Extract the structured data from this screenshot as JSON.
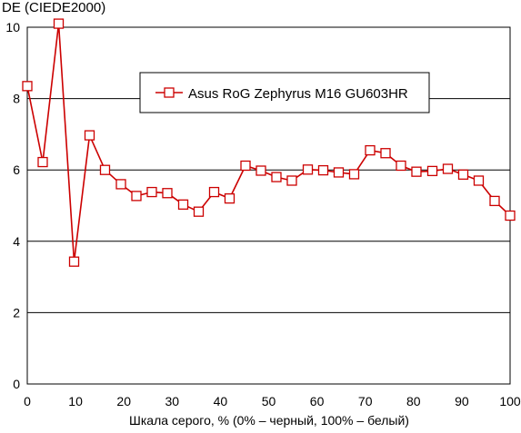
{
  "chart_data": {
    "type": "line",
    "ylabel": "DE (CIEDE2000)",
    "xlabel": "Шкала серого, % (0% – черный, 100% – белый)",
    "xlim": [
      0,
      100
    ],
    "ylim": [
      0,
      10
    ],
    "xticks": [
      0,
      10,
      20,
      30,
      40,
      50,
      60,
      70,
      80,
      90,
      100
    ],
    "yticks": [
      0,
      2,
      4,
      6,
      8,
      10
    ],
    "grid": "horizontal",
    "legend_position": "top-center",
    "series": [
      {
        "name": "Asus RoG Zephyrus M16 GU603HR",
        "color": "#cc0000",
        "marker": "open-square",
        "x": [
          0,
          3.2,
          6.5,
          9.7,
          12.9,
          16.1,
          19.4,
          22.6,
          25.8,
          29,
          32.3,
          35.5,
          38.7,
          41.9,
          45.2,
          48.4,
          51.6,
          54.8,
          58.1,
          61.3,
          64.5,
          67.7,
          71,
          74.2,
          77.4,
          80.6,
          83.9,
          87.1,
          90.3,
          93.5,
          96.8,
          100
        ],
        "y": [
          8.35,
          6.22,
          10.1,
          3.43,
          6.97,
          6.0,
          5.6,
          5.27,
          5.38,
          5.35,
          5.03,
          4.83,
          5.38,
          5.2,
          6.12,
          5.98,
          5.8,
          5.7,
          6.01,
          5.99,
          5.93,
          5.88,
          6.55,
          6.47,
          6.12,
          5.95,
          5.97,
          6.03,
          5.87,
          5.7,
          5.13,
          4.72
        ]
      }
    ]
  }
}
